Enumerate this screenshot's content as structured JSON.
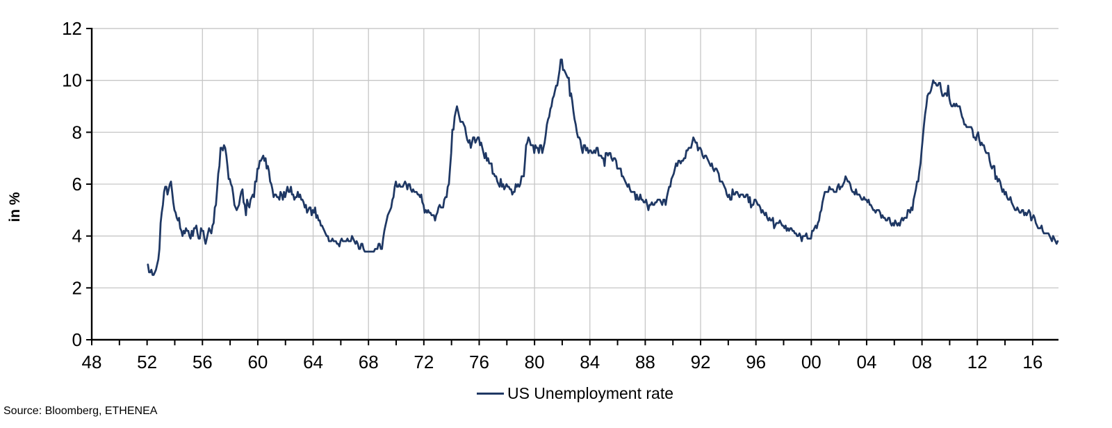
{
  "footer": {
    "source": "Source: Bloomberg, ETHENEA"
  },
  "chart_data": {
    "type": "line",
    "title": "",
    "xlabel": "",
    "ylabel": "in %",
    "legend_position": "bottom",
    "grid": true,
    "ylim": [
      0,
      12
    ],
    "xlim_axis_years": [
      48,
      118
    ],
    "y_ticks": [
      0,
      2,
      4,
      6,
      8,
      10,
      12
    ],
    "y_tick_labels": [
      "0",
      "2",
      "4",
      "6",
      "8",
      "10",
      "12"
    ],
    "x_tick_positions": [
      48,
      52,
      56,
      60,
      64,
      68,
      72,
      76,
      80,
      84,
      88,
      92,
      96,
      100,
      104,
      108,
      112,
      116
    ],
    "x_tick_labels": [
      "48",
      "52",
      "56",
      "60",
      "64",
      "68",
      "72",
      "76",
      "80",
      "84",
      "88",
      "92",
      "96",
      "00",
      "04",
      "08",
      "12",
      "16"
    ],
    "x_minor_tick_range": [
      48,
      116
    ],
    "x_minor_tick_step": 2,
    "x_grid_years": [
      56,
      60,
      64,
      68,
      72,
      76,
      80,
      84,
      88,
      92,
      96,
      100,
      104,
      108,
      112,
      116
    ],
    "colors": {
      "line": "#1f3864",
      "grid": "#c6c6c6",
      "axis": "#000000",
      "text": "#000000"
    },
    "series": [
      {
        "name": "US Unemployment rate",
        "color": "#1f3864",
        "x_start_axis": 52.06,
        "x_step": 0.0833333,
        "values": [
          2.9,
          2.6,
          2.6,
          2.7,
          2.5,
          2.5,
          2.6,
          2.7,
          2.9,
          3.1,
          3.5,
          4.5,
          4.9,
          5.2,
          5.7,
          5.9,
          5.9,
          5.6,
          5.8,
          6.0,
          6.1,
          5.7,
          5.3,
          5.0,
          4.9,
          4.7,
          4.6,
          4.7,
          4.3,
          4.2,
          4.0,
          4.2,
          4.1,
          4.3,
          4.2,
          4.2,
          4.0,
          3.9,
          4.2,
          4.0,
          4.3,
          4.3,
          4.4,
          4.1,
          3.9,
          3.9,
          4.3,
          4.2,
          4.2,
          3.9,
          3.7,
          3.9,
          4.1,
          4.3,
          4.2,
          4.1,
          4.4,
          4.5,
          5.1,
          5.2,
          5.8,
          6.4,
          6.7,
          7.4,
          7.4,
          7.3,
          7.5,
          7.4,
          7.1,
          6.7,
          6.2,
          6.2,
          6.0,
          5.9,
          5.6,
          5.2,
          5.1,
          5.0,
          5.1,
          5.2,
          5.5,
          5.7,
          5.8,
          5.3,
          5.2,
          4.8,
          5.4,
          5.2,
          5.1,
          5.4,
          5.5,
          5.6,
          5.5,
          6.1,
          6.1,
          6.6,
          6.6,
          6.9,
          6.9,
          7.0,
          7.1,
          6.9,
          7.0,
          6.6,
          6.7,
          6.5,
          6.1,
          6.0,
          5.8,
          5.5,
          5.6,
          5.6,
          5.5,
          5.5,
          5.4,
          5.7,
          5.6,
          5.4,
          5.7,
          5.5,
          5.7,
          5.9,
          5.7,
          5.7,
          5.9,
          5.6,
          5.6,
          5.4,
          5.5,
          5.5,
          5.7,
          5.5,
          5.6,
          5.4,
          5.4,
          5.3,
          5.1,
          5.2,
          4.9,
          5.0,
          5.1,
          5.1,
          4.8,
          5.0,
          4.9,
          5.1,
          4.7,
          4.8,
          4.6,
          4.6,
          4.4,
          4.4,
          4.3,
          4.2,
          4.1,
          4.0,
          4.0,
          3.8,
          3.8,
          3.8,
          3.9,
          3.8,
          3.8,
          3.8,
          3.7,
          3.7,
          3.6,
          3.8,
          3.9,
          3.8,
          3.8,
          3.8,
          3.8,
          3.9,
          3.8,
          3.8,
          3.8,
          4.0,
          3.9,
          3.8,
          3.7,
          3.8,
          3.7,
          3.5,
          3.5,
          3.7,
          3.7,
          3.5,
          3.4,
          3.4,
          3.4,
          3.4,
          3.4,
          3.4,
          3.4,
          3.4,
          3.4,
          3.5,
          3.5,
          3.5,
          3.7,
          3.7,
          3.5,
          3.5,
          3.9,
          4.2,
          4.4,
          4.6,
          4.8,
          4.9,
          5.0,
          5.1,
          5.4,
          5.5,
          5.9,
          6.1,
          5.9,
          5.9,
          6.0,
          5.9,
          5.9,
          5.9,
          6.0,
          6.1,
          6.0,
          5.8,
          6.0,
          6.0,
          5.8,
          5.7,
          5.8,
          5.7,
          5.7,
          5.7,
          5.6,
          5.6,
          5.5,
          5.6,
          5.3,
          5.2,
          4.9,
          5.0,
          4.9,
          5.0,
          4.9,
          4.9,
          4.8,
          4.8,
          4.8,
          4.6,
          4.8,
          4.9,
          5.1,
          5.2,
          5.1,
          5.1,
          5.1,
          5.4,
          5.5,
          5.5,
          5.9,
          6.0,
          6.6,
          7.2,
          8.1,
          8.1,
          8.6,
          8.8,
          9.0,
          8.8,
          8.6,
          8.4,
          8.4,
          8.4,
          8.3,
          8.2,
          7.9,
          7.7,
          7.6,
          7.7,
          7.4,
          7.6,
          7.8,
          7.8,
          7.6,
          7.7,
          7.8,
          7.8,
          7.5,
          7.6,
          7.4,
          7.2,
          7.0,
          7.2,
          6.9,
          7.0,
          6.8,
          6.8,
          6.8,
          6.4,
          6.4,
          6.3,
          6.3,
          6.1,
          6.0,
          5.9,
          6.2,
          5.9,
          6.0,
          5.8,
          5.9,
          6.0,
          5.9,
          5.9,
          5.8,
          5.8,
          5.6,
          5.7,
          5.7,
          6.0,
          5.9,
          6.0,
          5.9,
          6.0,
          6.3,
          6.3,
          6.3,
          6.9,
          7.5,
          7.6,
          7.8,
          7.7,
          7.5,
          7.5,
          7.5,
          7.2,
          7.5,
          7.4,
          7.4,
          7.2,
          7.5,
          7.5,
          7.2,
          7.4,
          7.6,
          7.9,
          8.3,
          8.5,
          8.6,
          8.9,
          9.0,
          9.3,
          9.4,
          9.6,
          9.8,
          9.8,
          10.1,
          10.4,
          10.8,
          10.8,
          10.4,
          10.4,
          10.3,
          10.2,
          10.1,
          10.1,
          9.4,
          9.5,
          9.2,
          8.8,
          8.5,
          8.3,
          8.0,
          7.8,
          7.8,
          7.7,
          7.4,
          7.2,
          7.5,
          7.5,
          7.3,
          7.4,
          7.2,
          7.3,
          7.3,
          7.2,
          7.2,
          7.3,
          7.2,
          7.4,
          7.4,
          7.1,
          7.1,
          7.1,
          7.0,
          7.0,
          6.7,
          7.2,
          7.2,
          7.1,
          7.2,
          7.2,
          7.0,
          6.9,
          7.0,
          7.0,
          6.9,
          6.6,
          6.6,
          6.6,
          6.6,
          6.3,
          6.3,
          6.2,
          6.1,
          6.0,
          5.9,
          6.0,
          5.8,
          5.7,
          5.7,
          5.7,
          5.7,
          5.4,
          5.6,
          5.4,
          5.4,
          5.6,
          5.4,
          5.4,
          5.3,
          5.3,
          5.4,
          5.2,
          5.0,
          5.2,
          5.2,
          5.3,
          5.2,
          5.2,
          5.3,
          5.3,
          5.4,
          5.4,
          5.4,
          5.3,
          5.2,
          5.4,
          5.4,
          5.2,
          5.5,
          5.7,
          5.9,
          5.9,
          6.2,
          6.3,
          6.4,
          6.6,
          6.8,
          6.7,
          6.9,
          6.9,
          6.8,
          6.9,
          6.9,
          7.0,
          7.0,
          7.3,
          7.3,
          7.4,
          7.4,
          7.4,
          7.6,
          7.8,
          7.7,
          7.6,
          7.6,
          7.3,
          7.4,
          7.4,
          7.3,
          7.1,
          7.0,
          7.1,
          7.1,
          7.0,
          6.9,
          6.8,
          6.7,
          6.8,
          6.6,
          6.5,
          6.6,
          6.6,
          6.5,
          6.4,
          6.1,
          6.1,
          6.1,
          6.0,
          5.9,
          5.8,
          5.6,
          5.5,
          5.6,
          5.4,
          5.4,
          5.8,
          5.6,
          5.6,
          5.7,
          5.7,
          5.6,
          5.5,
          5.6,
          5.6,
          5.6,
          5.5,
          5.5,
          5.6,
          5.6,
          5.3,
          5.5,
          5.1,
          5.2,
          5.2,
          5.4,
          5.4,
          5.3,
          5.2,
          5.2,
          5.1,
          4.9,
          5.0,
          4.9,
          4.8,
          4.9,
          4.7,
          4.6,
          4.7,
          4.6,
          4.6,
          4.7,
          4.3,
          4.4,
          4.5,
          4.5,
          4.5,
          4.6,
          4.5,
          4.4,
          4.4,
          4.3,
          4.4,
          4.2,
          4.3,
          4.2,
          4.3,
          4.3,
          4.2,
          4.2,
          4.1,
          4.1,
          4.0,
          4.0,
          4.1,
          4.0,
          3.8,
          4.0,
          4.0,
          4.0,
          4.1,
          3.9,
          3.9,
          3.9,
          3.9,
          4.2,
          4.2,
          4.3,
          4.4,
          4.3,
          4.5,
          4.6,
          4.9,
          5.0,
          5.3,
          5.5,
          5.7,
          5.7,
          5.7,
          5.7,
          5.9,
          5.8,
          5.8,
          5.8,
          5.7,
          5.7,
          5.7,
          5.9,
          6.0,
          5.8,
          5.9,
          5.9,
          6.0,
          6.1,
          6.3,
          6.2,
          6.1,
          6.1,
          6.0,
          5.8,
          5.7,
          5.7,
          5.6,
          5.8,
          5.6,
          5.6,
          5.6,
          5.5,
          5.4,
          5.4,
          5.5,
          5.4,
          5.4,
          5.3,
          5.4,
          5.2,
          5.2,
          5.1,
          5.0,
          5.0,
          4.9,
          5.0,
          5.0,
          5.0,
          4.9,
          4.7,
          4.8,
          4.7,
          4.7,
          4.6,
          4.6,
          4.7,
          4.7,
          4.5,
          4.4,
          4.5,
          4.4,
          4.6,
          4.5,
          4.4,
          4.5,
          4.4,
          4.6,
          4.7,
          4.6,
          4.7,
          4.7,
          4.7,
          5.0,
          5.0,
          4.9,
          5.1,
          5.0,
          5.4,
          5.6,
          5.8,
          6.1,
          6.1,
          6.5,
          6.8,
          7.3,
          7.8,
          8.3,
          8.7,
          9.0,
          9.4,
          9.5,
          9.5,
          9.6,
          9.8,
          10.0,
          9.9,
          9.9,
          9.8,
          9.8,
          9.9,
          9.9,
          9.6,
          9.4,
          9.4,
          9.5,
          9.5,
          9.4,
          9.8,
          9.3,
          9.1,
          9.0,
          9.0,
          9.1,
          9.0,
          9.1,
          9.0,
          9.0,
          9.0,
          8.8,
          8.6,
          8.5,
          8.3,
          8.3,
          8.2,
          8.2,
          8.2,
          8.2,
          8.2,
          8.1,
          7.8,
          7.8,
          7.7,
          7.9,
          8.0,
          7.7,
          7.5,
          7.6,
          7.5,
          7.5,
          7.3,
          7.2,
          7.2,
          7.2,
          6.9,
          6.7,
          6.6,
          6.7,
          6.7,
          6.2,
          6.3,
          6.1,
          6.2,
          6.1,
          5.9,
          5.7,
          5.8,
          5.6,
          5.7,
          5.5,
          5.4,
          5.4,
          5.5,
          5.3,
          5.2,
          5.1,
          5.0,
          5.0,
          5.1,
          5.0,
          4.9,
          4.9,
          5.0,
          5.0,
          4.8,
          4.9,
          4.8,
          4.9,
          5.0,
          4.9,
          4.6,
          4.7,
          4.8,
          4.7,
          4.5,
          4.4,
          4.3,
          4.3,
          4.3,
          4.4,
          4.2,
          4.1,
          4.1,
          4.1,
          4.1,
          4.1,
          4.0,
          3.9,
          3.8,
          4.0,
          3.9,
          3.8,
          3.7,
          3.8
        ]
      }
    ]
  }
}
